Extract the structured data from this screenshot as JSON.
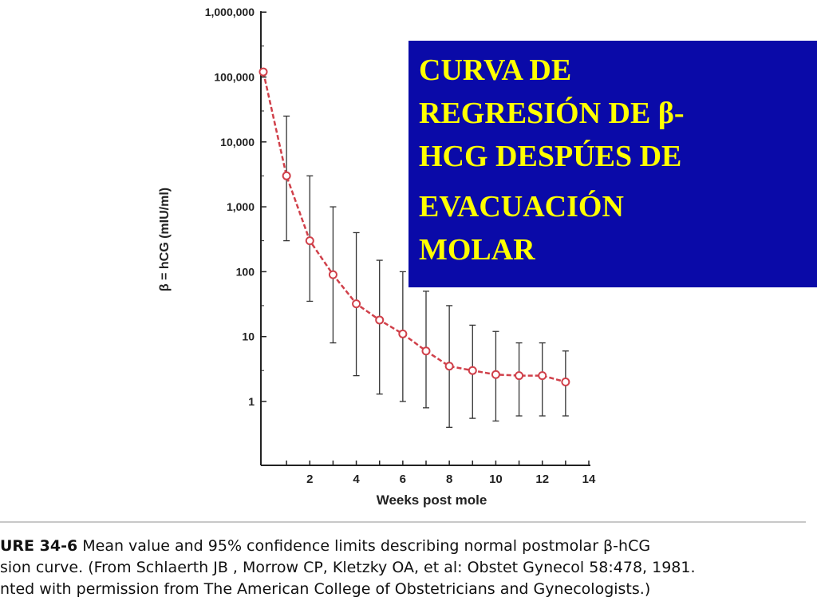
{
  "chart_data": {
    "type": "line",
    "xlabel": "Weeks post mole",
    "ylabel": "β = hCG (mIU/ml)",
    "x_ticks": [
      "2",
      "4",
      "6",
      "8",
      "10",
      "12",
      "14"
    ],
    "x_tick_values": [
      2,
      4,
      6,
      8,
      10,
      12,
      14
    ],
    "y_ticks": [
      "1",
      "10",
      "100",
      "1,000",
      "10,000",
      "100,000",
      "1,000,000"
    ],
    "y_tick_values": [
      1,
      10,
      100,
      1000,
      10000,
      100000,
      1000000
    ],
    "y_scale": "log",
    "xlim": [
      0,
      14
    ],
    "ylim": [
      0.2,
      1000000
    ],
    "grid": false,
    "series": [
      {
        "x": [
          0,
          1,
          2,
          3,
          4,
          5,
          6,
          7,
          8,
          9,
          10,
          11,
          12,
          13
        ],
        "mean": [
          120000,
          3000,
          300,
          90,
          32,
          18,
          11,
          6,
          3.5,
          3,
          2.6,
          2.5,
          2.5,
          2
        ],
        "upper": [
          120000,
          25000,
          3000,
          1000,
          400,
          150,
          100,
          50,
          30,
          15,
          12,
          8,
          8,
          6
        ],
        "lower": [
          120000,
          300,
          35,
          8,
          2.5,
          1.3,
          1,
          0.8,
          0.4,
          0.55,
          0.5,
          0.6,
          0.6,
          0.6
        ],
        "color": "#d0404a"
      }
    ]
  },
  "callout": {
    "lines": [
      "CURVA DE",
      "REGRESIÓN DE β-",
      "HCG DESPÚES DE",
      "EVACUACIÓN",
      "MOLAR"
    ],
    "background": "#0a0aa8",
    "text_color": "#ffff00"
  },
  "caption": {
    "figure_label": "URE 34-6",
    "line1_rest": " Mean value and 95% confidence limits describing normal postmolar β-hCG",
    "line2": "sion curve. (From Schlaerth JB , Morrow CP, Kletzky OA, et al: Obstet Gynecol 58:478, 1981.",
    "line3": "nted with permission from The American College of Obstetricians and Gynecologists.)"
  }
}
